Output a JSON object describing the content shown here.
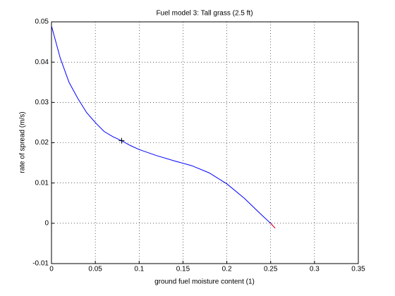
{
  "chart_data": {
    "type": "line",
    "title": "Fuel model 3: Tall grass (2.5 ft)",
    "x_label": "ground fuel moisture content (1)",
    "y_label": "rate of spread (m/s)",
    "series": [
      {
        "color": "#0000ff",
        "x": [
          0,
          0.01,
          0.02,
          0.03,
          0.04,
          0.05,
          0.06,
          0.07,
          0.08,
          0.09,
          0.1,
          0.12,
          0.14,
          0.16,
          0.18,
          0.2,
          0.22,
          0.24,
          0.25,
          0.255
        ],
        "values": [
          0.049,
          0.041,
          0.035,
          0.031,
          0.0275,
          0.025,
          0.0228,
          0.0215,
          0.0205,
          0.0193,
          0.0183,
          0.0168,
          0.0155,
          0.0143,
          0.0125,
          0.0098,
          0.0062,
          0.002,
          0.0,
          -0.0012
        ]
      },
      {
        "color": "#ff0000",
        "x": [
          0.25,
          0.255
        ],
        "values": [
          0.0,
          -0.0012
        ]
      }
    ],
    "marker": {
      "x": 0.08,
      "y": 0.0205,
      "color": "#000000"
    },
    "xlim": [
      0,
      0.35
    ],
    "xticks": [
      0,
      0.05,
      0.1,
      0.15,
      0.2,
      0.25,
      0.3,
      0.35
    ],
    "ylim": [
      -0.01,
      0.05
    ],
    "yticks": [
      -0.01,
      0,
      0.01,
      0.02,
      0.03,
      0.04,
      0.05
    ],
    "grid": true
  }
}
